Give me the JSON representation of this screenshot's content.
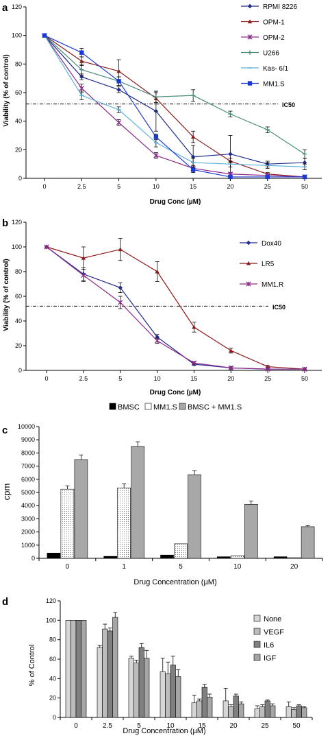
{
  "chart_data": [
    {
      "panel": "a",
      "type": "line",
      "x": [
        "0",
        "2.5",
        "5",
        "10",
        "15",
        "20",
        "25",
        "50"
      ],
      "xlabel": "Drug Conc (µM)",
      "ylabel": "Viability (% of control)",
      "ylim": [
        0,
        120
      ],
      "yticks": [
        0,
        20,
        40,
        60,
        80,
        100,
        120
      ],
      "reference_line": {
        "label": "IC50",
        "y": 52
      },
      "legend_position": "right",
      "series": [
        {
          "name": "RPMI 8226",
          "color": "#1f2a8c",
          "marker": "diamond",
          "values": [
            100,
            71,
            62,
            47,
            15,
            17,
            10,
            11
          ],
          "errors": [
            0,
            2,
            2,
            14,
            8,
            13,
            2,
            3
          ]
        },
        {
          "name": "OPM-1",
          "color": "#8b1a1a",
          "marker": "triangle",
          "values": [
            100,
            82,
            75,
            56,
            29,
            12,
            3,
            1
          ],
          "errors": [
            0,
            3,
            8,
            4,
            4,
            2,
            1,
            1
          ]
        },
        {
          "name": "OPM-2",
          "color": "#8b2a8b",
          "marker": "star",
          "values": [
            100,
            63,
            39,
            16,
            7,
            3,
            2,
            1
          ],
          "errors": [
            0,
            3,
            2,
            2,
            2,
            1,
            1,
            1
          ]
        },
        {
          "name": "U266",
          "color": "#4a8a7a",
          "marker": "plus",
          "values": [
            100,
            76,
            68,
            57,
            58,
            45,
            34,
            17
          ],
          "errors": [
            0,
            4,
            3,
            4,
            4,
            2,
            2,
            3
          ]
        },
        {
          "name": "Kas- 6/1",
          "color": "#5ab0d8",
          "marker": "dash",
          "values": [
            100,
            58,
            48,
            25,
            11,
            10,
            9,
            8
          ],
          "errors": [
            0,
            3,
            2,
            3,
            3,
            2,
            2,
            2
          ]
        },
        {
          "name": "MM1.S",
          "color": "#1a3ad8",
          "marker": "square",
          "values": [
            100,
            88,
            68,
            29,
            6,
            1,
            1,
            1
          ],
          "errors": [
            0,
            3,
            3,
            2,
            2,
            1,
            1,
            1
          ]
        }
      ]
    },
    {
      "panel": "b",
      "type": "line",
      "x": [
        "0",
        "2.5",
        "5",
        "10",
        "15",
        "20",
        "25",
        "50"
      ],
      "xlabel": "Drug Conc (µM)",
      "ylabel": "Viability (% of control)",
      "ylim": [
        0,
        120
      ],
      "yticks": [
        0,
        20,
        40,
        60,
        80,
        100,
        120
      ],
      "reference_line": {
        "label": "IC50",
        "y": 52
      },
      "legend_position": "right",
      "series": [
        {
          "name": "Dox40",
          "color": "#1f2a8c",
          "marker": "diamond",
          "values": [
            100,
            78,
            67,
            27,
            5,
            2,
            1,
            1
          ],
          "errors": [
            0,
            5,
            4,
            2,
            1,
            1,
            1,
            1
          ]
        },
        {
          "name": "LR5",
          "color": "#8b1a1a",
          "marker": "triangle",
          "values": [
            100,
            91,
            98,
            80,
            35,
            16,
            3,
            1
          ],
          "errors": [
            0,
            9,
            9,
            8,
            4,
            2,
            1,
            1
          ]
        },
        {
          "name": "MM1.R",
          "color": "#8b2a8b",
          "marker": "star",
          "values": [
            100,
            77,
            55,
            24,
            6,
            2,
            1,
            1
          ],
          "errors": [
            0,
            5,
            5,
            2,
            1,
            1,
            1,
            1
          ]
        }
      ]
    },
    {
      "panel": "c",
      "type": "bar",
      "categories": [
        "0",
        "1",
        "5",
        "10",
        "20"
      ],
      "xlabel": "Drug Concentration (µM)",
      "ylabel": "cpm",
      "ylim": [
        0,
        10000
      ],
      "yticks": [
        0,
        1000,
        2000,
        3000,
        4000,
        5000,
        6000,
        7000,
        8000,
        9000,
        10000
      ],
      "legend_position": "top",
      "series": [
        {
          "name": "BMSC",
          "fill": "#000000",
          "pattern": "solid",
          "values": [
            400,
            150,
            250,
            120,
            120
          ],
          "errors": [
            0,
            0,
            0,
            0,
            0
          ]
        },
        {
          "name": "MM1.S",
          "fill": "#ffffff",
          "pattern": "dots",
          "values": [
            5250,
            5350,
            1100,
            200,
            50
          ],
          "errors": [
            250,
            300,
            0,
            0,
            0
          ]
        },
        {
          "name": "BMSC + MM1.S",
          "fill": "#a8a8a8",
          "pattern": "solid",
          "values": [
            7500,
            8500,
            6350,
            4100,
            2400
          ],
          "errors": [
            350,
            350,
            300,
            250,
            80
          ]
        }
      ]
    },
    {
      "panel": "d",
      "type": "bar",
      "categories": [
        "0",
        "2.5",
        "5",
        "10",
        "15",
        "20",
        "25",
        "50"
      ],
      "xlabel": "Drug Concentration (µM)",
      "ylabel": "% of Control",
      "ylim": [
        0,
        120
      ],
      "yticks": [
        0,
        20,
        40,
        60,
        80,
        100,
        120
      ],
      "legend_position": "right",
      "series": [
        {
          "name": "None",
          "fill": "#d6d6d6",
          "values": [
            100,
            72,
            61,
            47,
            15,
            17,
            9,
            11
          ],
          "errors": [
            0,
            2,
            2,
            14,
            8,
            13,
            3,
            5
          ]
        },
        {
          "name": "VEGF",
          "fill": "#bcbcbc",
          "values": [
            100,
            91,
            56,
            45,
            17,
            11,
            11,
            8
          ],
          "errors": [
            0,
            5,
            3,
            12,
            2,
            2,
            2,
            2
          ]
        },
        {
          "name": "IL6",
          "fill": "#808080",
          "values": [
            100,
            89,
            72,
            54,
            31,
            22,
            17,
            12
          ],
          "errors": [
            0,
            3,
            4,
            9,
            3,
            2,
            1,
            1
          ]
        },
        {
          "name": "IGF",
          "fill": "#a6a6a6",
          "values": [
            100,
            103,
            61,
            42,
            21,
            14,
            12,
            10
          ],
          "errors": [
            0,
            5,
            8,
            7,
            3,
            2,
            2,
            1
          ]
        }
      ]
    }
  ]
}
